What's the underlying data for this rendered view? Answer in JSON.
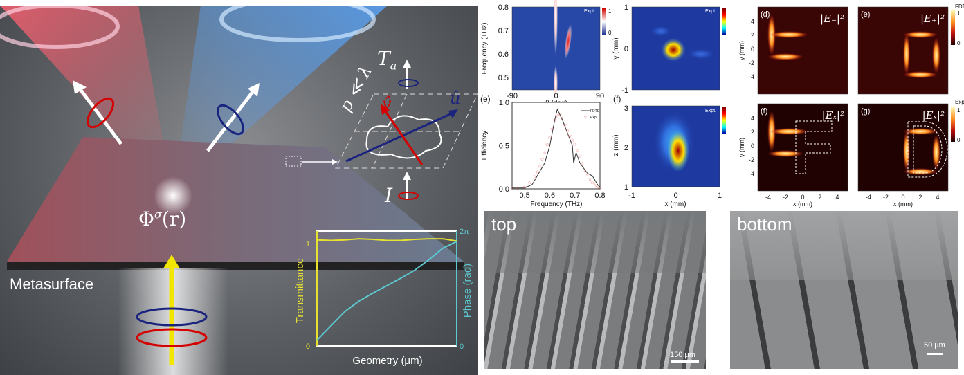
{
  "illustration": {
    "metasurface_label": "Metasurface",
    "phase_label": "Φ",
    "phase_sup": "σ",
    "phase_arg": "(r)",
    "transmitted_label": "T",
    "transmitted_sub": "a",
    "incident_label": "I",
    "period_label": "p ≪ λ",
    "axis_v": "v̂",
    "axis_u": "û",
    "colors": {
      "left_beam": "#e8505a",
      "right_beam": "#4a90e0",
      "incident": "#f2e600",
      "lcp": "#1a237e",
      "rcp": "#d50000"
    }
  },
  "chart_data": [
    {
      "type": "line",
      "panel": "inset",
      "xlabel": "Geometry (μm)",
      "ylabel": "Transmittance",
      "y2label": "Phase (rad)",
      "yticks": [
        "0",
        "1"
      ],
      "y2ticks": [
        "0",
        "2π"
      ],
      "ylim": [
        0,
        1
      ],
      "y2lim_pi": [
        0,
        2
      ],
      "colors": {
        "transmittance": "#e6e030",
        "phase": "#5cc8d0"
      },
      "transmittance": [
        0.97,
        0.965,
        0.97,
        0.98,
        0.975,
        0.965,
        0.965,
        0.975,
        0.98,
        0.98,
        0.96
      ],
      "phase_pi": [
        0.1,
        0.35,
        0.6,
        0.78,
        0.92,
        1.05,
        1.18,
        1.32,
        1.5,
        1.7,
        1.82
      ]
    },
    {
      "type": "heatmap",
      "panel": "c",
      "xlabel": "θ (deg)",
      "ylabel": "Frequency (THz)",
      "xticks": [
        "-90",
        "0",
        "90"
      ],
      "yticks": [
        "0.5",
        "0.6",
        "0.7",
        "0.8"
      ],
      "xlim": [
        -90,
        90
      ],
      "ylim": [
        0.45,
        0.8
      ],
      "tag": "Expt.",
      "colorbar": [
        "1",
        "0"
      ]
    },
    {
      "type": "line",
      "panel": "e",
      "label": "(e)",
      "xlabel": "Frequency (THz)",
      "ylabel": "Efficiency",
      "xticks": [
        "0.5",
        "0.6",
        "0.7",
        "0.8"
      ],
      "yticks": [
        "0.0",
        "0.5",
        "1.0"
      ],
      "xlim": [
        0.45,
        0.8
      ],
      "ylim": [
        0,
        1
      ],
      "series": [
        {
          "name": "FDTD",
          "color": "#333333",
          "x": [
            0.45,
            0.5,
            0.53,
            0.56,
            0.58,
            0.6,
            0.62,
            0.63,
            0.65,
            0.67,
            0.69,
            0.695,
            0.705,
            0.72,
            0.75,
            0.77,
            0.79,
            0.8
          ],
          "y": [
            0.01,
            0.01,
            0.05,
            0.2,
            0.3,
            0.5,
            0.8,
            0.92,
            0.8,
            0.65,
            0.5,
            0.3,
            0.42,
            0.3,
            0.18,
            0.15,
            0.05,
            0.02
          ]
        },
        {
          "name": "Expt.",
          "color": "#e05050",
          "x": [
            0.45,
            0.47,
            0.5,
            0.52,
            0.54,
            0.55,
            0.56,
            0.57,
            0.58,
            0.59,
            0.6,
            0.61,
            0.62,
            0.63,
            0.64,
            0.65,
            0.66,
            0.67,
            0.68,
            0.69,
            0.7,
            0.71,
            0.72,
            0.73,
            0.74,
            0.75,
            0.76,
            0.77,
            0.78,
            0.79,
            0.8
          ],
          "y": [
            0.01,
            0.01,
            0.03,
            0.08,
            0.15,
            0.2,
            0.27,
            0.35,
            0.43,
            0.52,
            0.6,
            0.7,
            0.8,
            0.85,
            0.87,
            0.82,
            0.75,
            0.68,
            0.62,
            0.57,
            0.52,
            0.45,
            0.38,
            0.3,
            0.22,
            0.17,
            0.12,
            0.08,
            0.05,
            0.03,
            0.01
          ]
        }
      ]
    },
    {
      "type": "heatmap",
      "panel": "focus-xy",
      "ylabel": "y (mm)",
      "yticks": [
        "-1",
        "0",
        "1"
      ],
      "tag": "Expt.",
      "colorbar": [
        "1",
        "0"
      ]
    },
    {
      "type": "heatmap",
      "panel": "f",
      "label": "(f)",
      "xlabel": "x (mm)",
      "ylabel": "z (mm)",
      "xticks": [
        "-1",
        "0",
        "1"
      ],
      "yticks": [
        "1",
        "2",
        "3"
      ],
      "tag": "Expt.",
      "colorbar": [
        "1",
        "0"
      ]
    },
    {
      "type": "heatmap",
      "panels": [
        {
          "label": "(d)",
          "title": "|E₋|²"
        },
        {
          "label": "(e)",
          "title": "|E₊|²"
        },
        {
          "label": "(f)",
          "title": "|Eₓ|²"
        },
        {
          "label": "(g)",
          "title": "|Eₓ|²"
        }
      ],
      "xlabel": "x (mm)",
      "ylabel": "y (mm)",
      "xticks": [
        "-4",
        "-2",
        "0",
        "2",
        "4"
      ],
      "yticks": [
        "4",
        "2",
        "0",
        "-2",
        "-4"
      ],
      "colorbar_top": {
        "title": "FDTD",
        "ticks": [
          "1",
          "0"
        ]
      },
      "colorbar_bottom": {
        "title": "Expt.",
        "ticks": [
          "1",
          "0"
        ]
      }
    }
  ],
  "sem": {
    "top_label": "top",
    "top_scale": "150 μm",
    "bottom_label": "bottom",
    "bottom_scale": "50 μm"
  }
}
